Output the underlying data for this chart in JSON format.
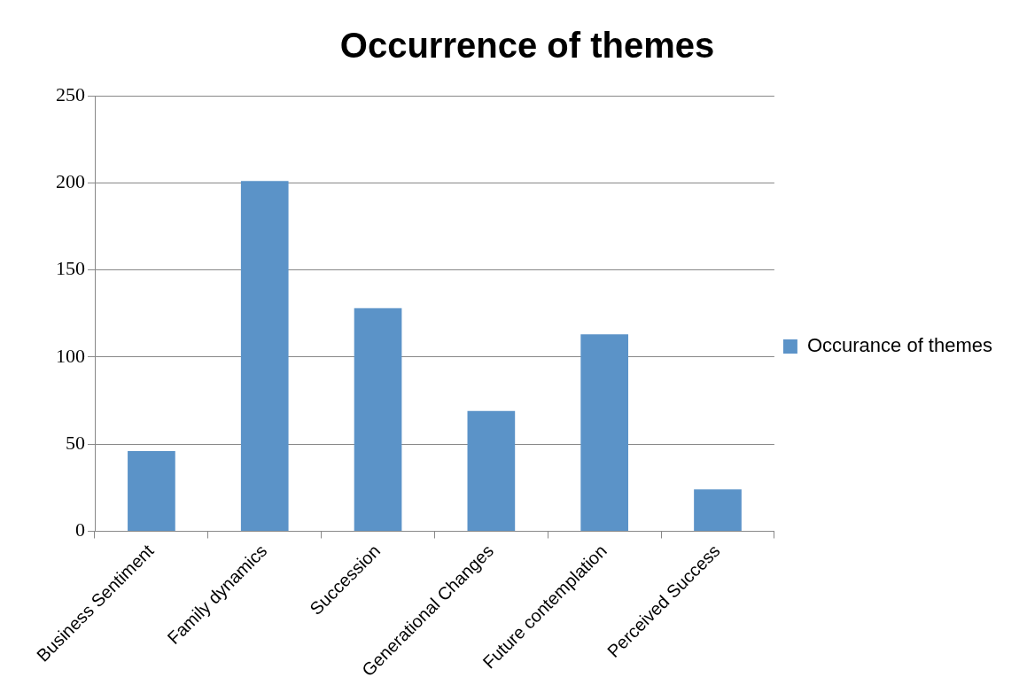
{
  "chart_data": {
    "type": "bar",
    "title": "Occurrence of themes",
    "categories": [
      "Business Sentiment",
      "Family dynamics",
      "Succession",
      "Generational Changes",
      "Future contemplation",
      "Perceived Success"
    ],
    "series": [
      {
        "name": "Occurance of themes",
        "color": "#5b93c8",
        "values": [
          46,
          201,
          128,
          69,
          113,
          24
        ]
      }
    ],
    "ylim": [
      0,
      250
    ],
    "yticks": [
      0,
      50,
      100,
      150,
      200,
      250
    ],
    "grid": "y",
    "legend": "right"
  }
}
